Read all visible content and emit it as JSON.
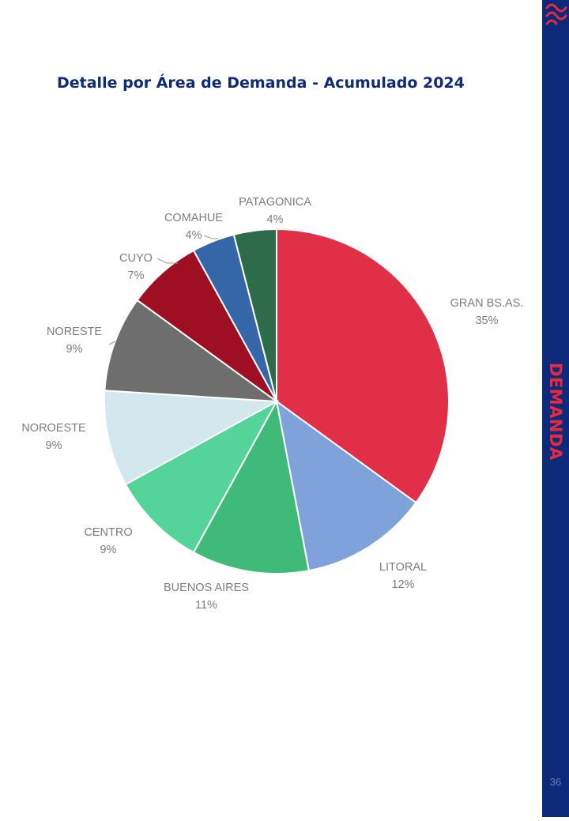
{
  "page": {
    "title": "Detalle por Área de Demanda - Acumulado 2024",
    "section_label": "DEMANDA",
    "page_number": "36"
  },
  "chart_data": {
    "type": "pie",
    "title": "Detalle por Área de Demanda - Acumulado 2024",
    "slices": [
      {
        "label": "GRAN BS.AS.",
        "value": 35,
        "value_label": "35%",
        "color": "#e12f48"
      },
      {
        "label": "LITORAL",
        "value": 12,
        "value_label": "12%",
        "color": "#7ea2d9"
      },
      {
        "label": "BUENOS AIRES",
        "value": 11,
        "value_label": "11%",
        "color": "#3fba78"
      },
      {
        "label": "CENTRO",
        "value": 9,
        "value_label": "9%",
        "color": "#55d49a"
      },
      {
        "label": "NOROESTE",
        "value": 9,
        "value_label": "9%",
        "color": "#d2e8ec"
      },
      {
        "label": "NORESTE",
        "value": 9,
        "value_label": "9%",
        "color": "#6e6e6e"
      },
      {
        "label": "CUYO",
        "value": 7,
        "value_label": "7%",
        "color": "#9e0f24"
      },
      {
        "label": "COMAHUE",
        "value": 4,
        "value_label": "4%",
        "color": "#3566a8"
      },
      {
        "label": "PATAGONICA",
        "value": 4,
        "value_label": "4%",
        "color": "#2e6b4a"
      }
    ]
  }
}
